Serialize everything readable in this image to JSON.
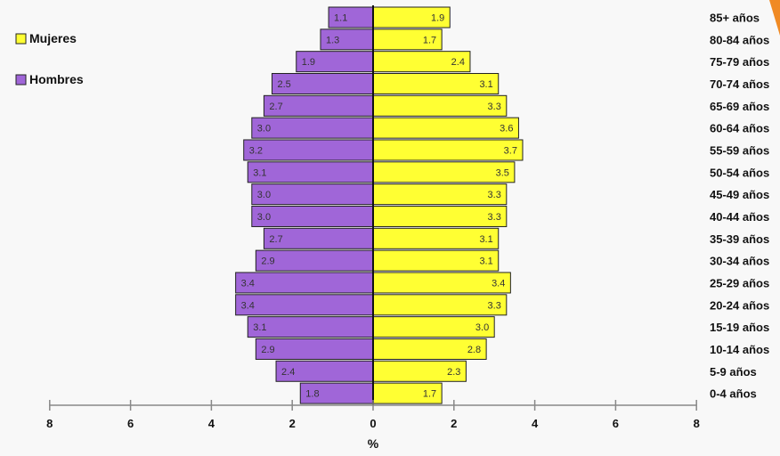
{
  "chart_data": {
    "type": "bar",
    "orientation": "horizontal",
    "categories": [
      "85+ años",
      "80-84 años",
      "75-79 años",
      "70-74 años",
      "65-69 años",
      "60-64 años",
      "55-59 años",
      "50-54 años",
      "45-49 años",
      "40-44 años",
      "35-39 años",
      "30-34 años",
      "25-29 años",
      "20-24 años",
      "15-19 años",
      "10-14 años",
      "5-9 años",
      "0-4 años"
    ],
    "series": [
      {
        "name": "Mujeres",
        "color": "#ffff33",
        "side": "right",
        "values": [
          1.9,
          1.7,
          2.4,
          3.1,
          3.3,
          3.6,
          3.7,
          3.5,
          3.3,
          3.3,
          3.1,
          3.1,
          3.4,
          3.3,
          3.0,
          2.8,
          2.3,
          1.7
        ],
        "labels": [
          "1.9",
          "1.7",
          "2.4",
          "3.1",
          "3.3",
          "3.6",
          "3.7",
          "3.5",
          "3.3",
          "3.3",
          "3.1",
          "3.1",
          "3.4",
          "3.3",
          "3.0",
          "2.8",
          "2.3",
          "1.7"
        ]
      },
      {
        "name": "Hombres",
        "color": "#a066d8",
        "side": "left",
        "values": [
          1.1,
          1.3,
          1.9,
          2.5,
          2.7,
          3.0,
          3.2,
          3.1,
          3.0,
          3.0,
          2.7,
          2.9,
          3.4,
          3.4,
          3.1,
          2.9,
          2.4,
          1.8
        ],
        "labels": [
          "1.1",
          "1.3",
          "1.9",
          "2.5",
          "2.7",
          "3.0",
          "3.2",
          "3.1",
          "3.0",
          "3.0",
          "2.7",
          "2.9",
          "3.4",
          "3.4",
          "3.1",
          "2.9",
          "2.4",
          "1.8"
        ]
      }
    ],
    "xlabel": "%",
    "xlim": [
      -8,
      8
    ],
    "xtick_values": [
      -8,
      -6,
      -4,
      -2,
      0,
      2,
      4,
      6,
      8
    ],
    "xtick_labels": [
      "8",
      "6",
      "4",
      "2",
      "0",
      "2",
      "4",
      "6",
      "8"
    ],
    "legend_position": "top-left",
    "grid": false
  }
}
